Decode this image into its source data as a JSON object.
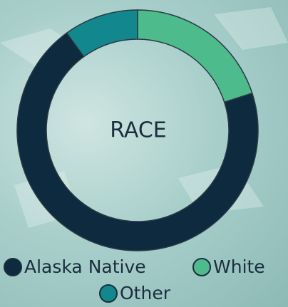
{
  "chart_data": {
    "type": "donut",
    "title": "RACE",
    "categories": [
      "White",
      "Alaska Native",
      "Other"
    ],
    "values": [
      20,
      70,
      10
    ],
    "colors": [
      "#4dbb8b",
      "#0e2a3e",
      "#12888e"
    ],
    "legend_order": [
      1,
      0,
      2
    ]
  }
}
